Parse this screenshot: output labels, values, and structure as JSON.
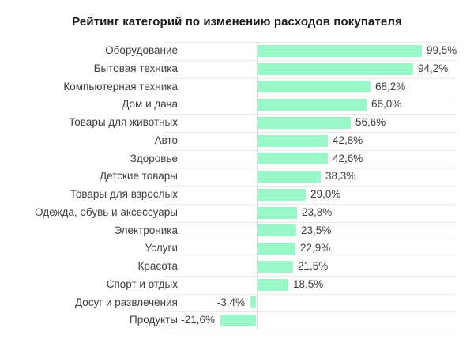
{
  "chart_data": {
    "type": "bar",
    "orientation": "horizontal",
    "title": "Рейтинг категорий по изменению расходов покупателя",
    "categories": [
      "Оборудование",
      "Бытовая техника",
      "Компьютерная техника",
      "Дом и дача",
      "Товары для животных",
      "Авто",
      "Здоровье",
      "Детские товары",
      "Товары для взрослых",
      "Одежда, обувь и аксессуары",
      "Электроника",
      "Услуги",
      "Красота",
      "Спорт и отдых",
      "Досуг и развлечения",
      "Продукты"
    ],
    "values": [
      99.5,
      94.2,
      68.2,
      66.0,
      56.6,
      42.8,
      42.6,
      38.3,
      29.0,
      23.8,
      23.5,
      22.9,
      21.5,
      18.5,
      -3.4,
      -21.6
    ],
    "value_labels": [
      "99,5%",
      "94,2%",
      "68,2%",
      "66,0%",
      "56,6%",
      "42,8%",
      "42,6%",
      "38,3%",
      "29,0%",
      "23,8%",
      "23,5%",
      "22,9%",
      "21,5%",
      "18,5%",
      "-3,4%",
      "-21,6%"
    ],
    "unit": "%",
    "xlim": [
      -55,
      120
    ],
    "grid": true,
    "legend": false,
    "colors": {
      "bar": "#9af8c8",
      "gridline": "#e9e9e9",
      "axis_line": "#d9d9d9",
      "label_text": "#3f3f3f",
      "title_text": "#1a1a1a",
      "background": "#ffffff"
    }
  }
}
